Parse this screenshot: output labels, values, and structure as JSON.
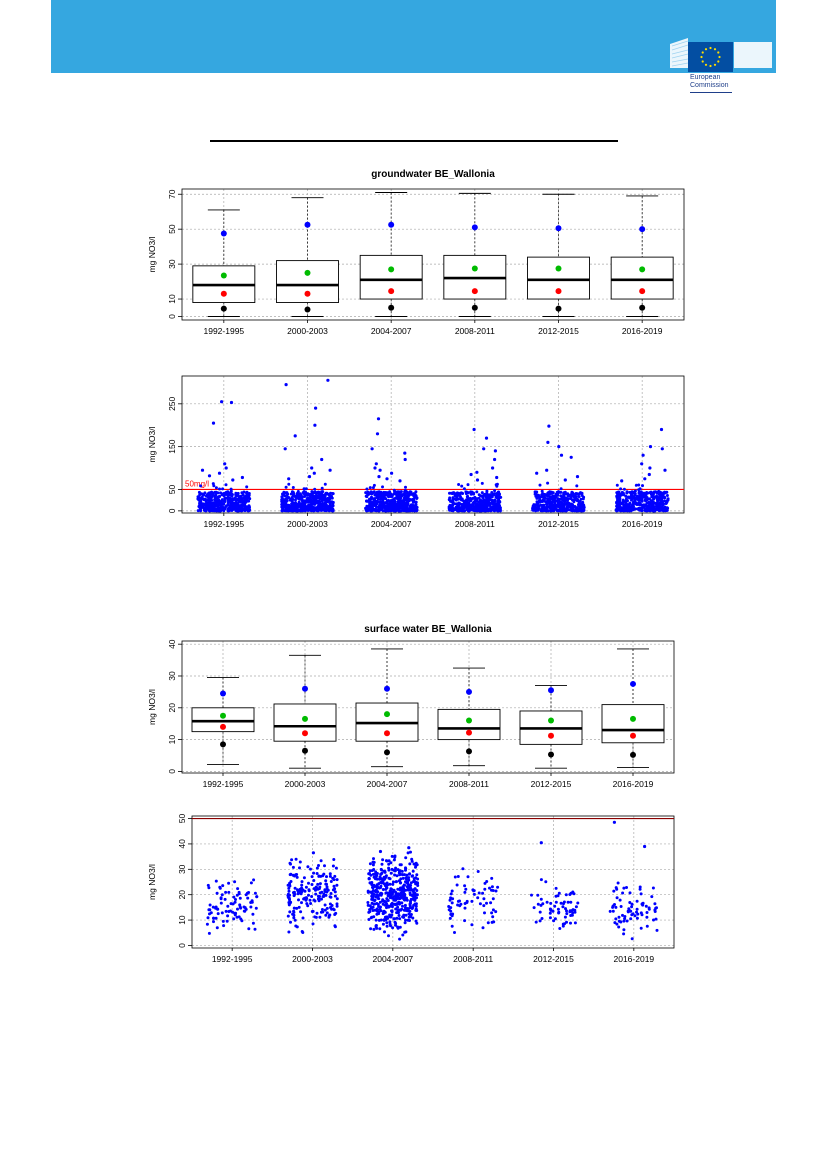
{
  "header": {
    "org_line1": "European",
    "org_line2": "Commission",
    "banner_color": "#35a7e0",
    "logo_icon": "eu-flag-stars-icon"
  },
  "chart_data": [
    {
      "id": "gw_box",
      "type": "box",
      "title": "groundwater BE_Wallonia",
      "ylabel": "mg NO3/l",
      "categories": [
        "1992-1995",
        "2000-2003",
        "2004-2007",
        "2008-2011",
        "2012-2015",
        "2016-2019"
      ],
      "yticks": [
        0,
        10,
        30,
        50,
        70
      ],
      "ylim": [
        -2,
        73
      ],
      "boxes": [
        {
          "whisker_low": 0,
          "q1": 8,
          "median": 18,
          "q3": 29,
          "whisker_high": 61,
          "p10": 4.5,
          "p25_dot": 13,
          "mean": 23.5,
          "p90": 47.5
        },
        {
          "whisker_low": 0,
          "q1": 8,
          "median": 18,
          "q3": 32,
          "whisker_high": 68,
          "p10": 4,
          "p25_dot": 13,
          "mean": 25,
          "p90": 52.5
        },
        {
          "whisker_low": 0,
          "q1": 10,
          "median": 21,
          "q3": 35,
          "whisker_high": 71,
          "p10": 5,
          "p25_dot": 14.5,
          "mean": 27,
          "p90": 52.5
        },
        {
          "whisker_low": 0,
          "q1": 10,
          "median": 22,
          "q3": 35,
          "whisker_high": 70.5,
          "p10": 5,
          "p25_dot": 14.5,
          "mean": 27.5,
          "p90": 51
        },
        {
          "whisker_low": 0,
          "q1": 10,
          "median": 21,
          "q3": 34,
          "whisker_high": 70,
          "p10": 4.5,
          "p25_dot": 14.5,
          "mean": 27.5,
          "p90": 50.5
        },
        {
          "whisker_low": 0,
          "q1": 10,
          "median": 21,
          "q3": 34,
          "whisker_high": 69,
          "p10": 5,
          "p25_dot": 14.5,
          "mean": 27,
          "p90": 50
        }
      ],
      "dot_colors": {
        "p10": "#000000",
        "p25_dot": "#ff0000",
        "mean": "#00bb00",
        "p90": "#0000ff"
      }
    },
    {
      "id": "gw_scatter",
      "type": "scatter",
      "ylabel": "mg NO3/l",
      "categories": [
        "1992-1995",
        "2000-2003",
        "2004-2007",
        "2008-2011",
        "2012-2015",
        "2016-2019"
      ],
      "yticks": [
        0,
        50,
        150,
        250
      ],
      "ylim": [
        -5,
        315
      ],
      "threshold": {
        "value": 50,
        "label": "50mg/l",
        "color": "#ff0000"
      },
      "point_color": "#0000ff",
      "dense_band_top": 45,
      "points_per_group": [
        420,
        480,
        520,
        430,
        400,
        430
      ],
      "outliers": [
        [
          [
            0,
            205
          ],
          [
            0,
            255
          ],
          [
            0,
            253
          ],
          [
            0,
            110
          ],
          [
            0,
            100
          ],
          [
            0,
            95
          ],
          [
            0,
            88
          ],
          [
            0,
            82
          ],
          [
            0,
            78
          ],
          [
            0,
            72
          ]
        ],
        [
          [
            1,
            305
          ],
          [
            1,
            295
          ],
          [
            1,
            200
          ],
          [
            1,
            240
          ],
          [
            1,
            175
          ],
          [
            1,
            145
          ],
          [
            1,
            120
          ],
          [
            1,
            100
          ],
          [
            1,
            95
          ],
          [
            1,
            88
          ],
          [
            1,
            80
          ],
          [
            1,
            75
          ]
        ],
        [
          [
            2,
            215
          ],
          [
            2,
            180
          ],
          [
            2,
            145
          ],
          [
            2,
            135
          ],
          [
            2,
            120
          ],
          [
            2,
            110
          ],
          [
            2,
            100
          ],
          [
            2,
            95
          ],
          [
            2,
            88
          ],
          [
            2,
            80
          ],
          [
            2,
            75
          ],
          [
            2,
            70
          ]
        ],
        [
          [
            3,
            190
          ],
          [
            3,
            170
          ],
          [
            3,
            145
          ],
          [
            3,
            140
          ],
          [
            3,
            120
          ],
          [
            3,
            100
          ],
          [
            3,
            90
          ],
          [
            3,
            85
          ],
          [
            3,
            78
          ],
          [
            3,
            72
          ]
        ],
        [
          [
            4,
            198
          ],
          [
            4,
            160
          ],
          [
            4,
            150
          ],
          [
            4,
            130
          ],
          [
            4,
            125
          ],
          [
            4,
            95
          ],
          [
            4,
            88
          ],
          [
            4,
            80
          ],
          [
            4,
            72
          ]
        ],
        [
          [
            5,
            190
          ],
          [
            5,
            150
          ],
          [
            5,
            145
          ],
          [
            5,
            130
          ],
          [
            5,
            110
          ],
          [
            5,
            100
          ],
          [
            5,
            95
          ],
          [
            5,
            85
          ],
          [
            5,
            75
          ],
          [
            5,
            70
          ]
        ]
      ]
    },
    {
      "id": "sw_box",
      "type": "box",
      "title": "surface water BE_Wallonia",
      "ylabel": "mg NO3/l",
      "categories": [
        "1992-1995",
        "2000-2003",
        "2004-2007",
        "2008-2011",
        "2012-2015",
        "2016-2019"
      ],
      "yticks": [
        0,
        10,
        20,
        30,
        40
      ],
      "ylim": [
        -0.5,
        41
      ],
      "boxes": [
        {
          "whisker_low": 2.2,
          "q1": 12.5,
          "median": 15.8,
          "q3": 20,
          "whisker_high": 29.5,
          "p10": 8.5,
          "p25_dot": 14,
          "mean": 17.5,
          "p90": 24.5
        },
        {
          "whisker_low": 1,
          "q1": 9.5,
          "median": 14.2,
          "q3": 21.2,
          "whisker_high": 36.5,
          "p10": 6.5,
          "p25_dot": 12,
          "mean": 16.5,
          "p90": 26
        },
        {
          "whisker_low": 1.5,
          "q1": 9.5,
          "median": 15.2,
          "q3": 21.5,
          "whisker_high": 38.5,
          "p10": 6,
          "p25_dot": 12,
          "mean": 18,
          "p90": 26
        },
        {
          "whisker_low": 1.8,
          "q1": 10,
          "median": 13.5,
          "q3": 19.5,
          "whisker_high": 32.5,
          "p10": 6.3,
          "p25_dot": 12.2,
          "mean": 16,
          "p90": 25
        },
        {
          "whisker_low": 1,
          "q1": 8.5,
          "median": 13.5,
          "q3": 19,
          "whisker_high": 27,
          "p10": 5.3,
          "p25_dot": 11.2,
          "mean": 16,
          "p90": 25.5
        },
        {
          "whisker_low": 1.2,
          "q1": 9,
          "median": 13,
          "q3": 21,
          "whisker_high": 38.5,
          "p10": 5.2,
          "p25_dot": 11.2,
          "mean": 16.5,
          "p90": 27.5
        }
      ],
      "dot_colors": {
        "p10": "#000000",
        "p25_dot": "#ff0000",
        "mean": "#00bb00",
        "p90": "#0000ff"
      }
    },
    {
      "id": "sw_scatter",
      "type": "scatter",
      "ylabel": "mg NO3/l",
      "categories": [
        "1992-1995",
        "2000-2003",
        "2004-2007",
        "2008-2011",
        "2012-2015",
        "2016-2019"
      ],
      "yticks": [
        0,
        10,
        20,
        30,
        40,
        50
      ],
      "ylim": [
        -1,
        51
      ],
      "threshold": {
        "value": 50,
        "label": "",
        "color": "#8b0000"
      },
      "point_color": "#0000ff",
      "points_per_group": [
        90,
        190,
        470,
        70,
        65,
        75
      ],
      "spread": [
        [
          2,
          30
        ],
        [
          1,
          36
        ],
        [
          1,
          38
        ],
        [
          2,
          33
        ],
        [
          1,
          27
        ],
        [
          1,
          26
        ]
      ],
      "outliers": [
        [],
        [
          [
            1,
            36.5
          ]
        ],
        [
          [
            2,
            38.5
          ],
          [
            2,
            37
          ]
        ],
        [],
        [
          [
            4,
            40.5
          ]
        ],
        [
          [
            5,
            48.5
          ],
          [
            5,
            39
          ]
        ]
      ]
    }
  ]
}
